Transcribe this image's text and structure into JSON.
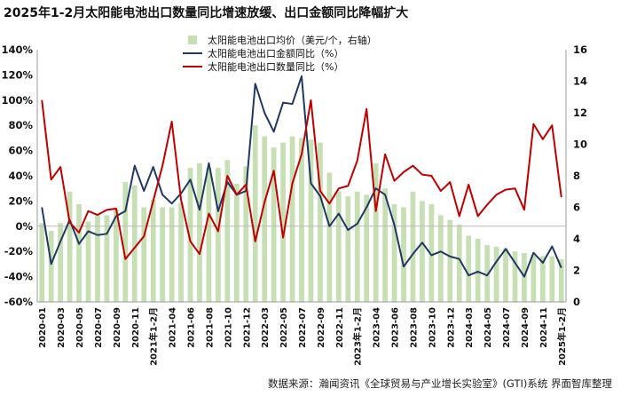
{
  "title": "2025年1-2月太阳能电池出口数量同比增速放缓、出口金额同比降幅扩大",
  "source": "数据来源：瀚闻资讯《全球贸易与产业增长实验室》(GTI)系统  界面智库整理",
  "colors": {
    "bar": "#c6e0b4",
    "amount": "#1f3864",
    "quantity": "#c00000",
    "axis": "#999999"
  },
  "chart_data": {
    "type": "bar+line",
    "categories": [
      "2020-01",
      "2020-02",
      "2020-03",
      "2020-04",
      "2020-05",
      "2020-06",
      "2020-07",
      "2020-08",
      "2020-09",
      "2020-10",
      "2020-11",
      "2020-12",
      "2021年1-2月",
      "2021-03",
      "2021-04",
      "2021-05",
      "2021-06",
      "2021-07",
      "2021-08",
      "2021-09",
      "2021-10",
      "2021-11",
      "2021-12",
      "2022年1-2月",
      "2022-03",
      "2022-04",
      "2022-05",
      "2022-06",
      "2022-07",
      "2022-08",
      "2022-09",
      "2022-10",
      "2022-11",
      "2022-12",
      "2023年1-2月",
      "2023-03",
      "2023-04",
      "2023-05",
      "2023-06",
      "2023-07",
      "2023-08",
      "2023-09",
      "2023-10",
      "2023-11",
      "2023-12",
      "2024年1-2月",
      "2024-03",
      "2024-04",
      "2024-05",
      "2024-06",
      "2024-07",
      "2024-08",
      "2024-09",
      "2024-10",
      "2024-11",
      "2024-12",
      "2025年1-2月"
    ],
    "xtick_labels": [
      "2020-01",
      "2020-03",
      "2020-05",
      "2020-07",
      "2020-09",
      "2020-11",
      "2021年1-2月",
      "2021-04",
      "2021-06",
      "2021-08",
      "2021-10",
      "2021-12",
      "2022-03",
      "2022-05",
      "2022-07",
      "2022-09",
      "2022-11",
      "2023年1-2月",
      "2023-04",
      "2023-06",
      "2023-08",
      "2023-10",
      "2023-12",
      "2024-03",
      "2024-05",
      "2024-07",
      "2024-09",
      "2024-11",
      "2025年1-2月"
    ],
    "series": [
      {
        "name": "太阳能电池出口均价（美元/个，右轴）",
        "type": "bar",
        "axis": "right",
        "values": [
          5.0,
          4.5,
          5.0,
          7.0,
          6.2,
          5.1,
          5.5,
          5.5,
          5.9,
          7.6,
          7.4,
          6.0,
          6.5,
          6.0,
          6.0,
          6.3,
          8.5,
          8.8,
          8.5,
          8.5,
          9.0,
          7.5,
          8.6,
          11.2,
          10.5,
          9.8,
          10.1,
          10.5,
          10.4,
          10.3,
          10.1,
          8.2,
          7.0,
          6.7,
          7.0,
          6.8,
          8.8,
          7.2,
          6.2,
          6.0,
          7.0,
          6.4,
          6.2,
          5.5,
          5.2,
          4.9,
          4.2,
          4.0,
          3.6,
          3.5,
          3.4,
          3.2,
          3.1,
          3.0,
          2.9,
          2.9,
          2.7
        ]
      },
      {
        "name": "太阳能电池出口金额同比（%）",
        "type": "line",
        "axis": "left",
        "values": [
          15,
          -30,
          -12,
          5,
          -14,
          -4,
          -7,
          -6,
          8,
          12,
          48,
          28,
          47,
          25,
          18,
          26,
          37,
          13,
          50,
          12,
          35,
          25,
          28,
          113,
          90,
          75,
          98,
          97,
          119,
          34,
          24,
          0,
          10,
          -3,
          2,
          15,
          30,
          25,
          1,
          -32,
          -22,
          -13,
          -23,
          -20,
          -24,
          -26,
          -39,
          -36,
          -39,
          -28,
          -18,
          -29,
          -40,
          -21,
          -29,
          -16,
          -33
        ]
      },
      {
        "name": "太阳能电池出口数量同比（%）",
        "type": "line",
        "axis": "left",
        "values": [
          100,
          37,
          47,
          3,
          -5,
          12,
          9,
          13,
          14,
          -26,
          -17,
          -8,
          20,
          48,
          83,
          21,
          -12,
          -22,
          10,
          -4,
          40,
          25,
          33,
          -12,
          19,
          44,
          -9,
          34,
          57,
          100,
          28,
          18,
          30,
          32,
          52,
          93,
          12,
          57,
          36,
          43,
          48,
          41,
          40,
          28,
          35,
          8,
          33,
          8,
          17,
          25,
          29,
          30,
          13,
          81,
          69,
          80,
          23
        ]
      }
    ],
    "y_left": {
      "ticks": [
        "140%",
        "120%",
        "100%",
        "80%",
        "60%",
        "40%",
        "20%",
        "0%",
        "-20%",
        "-40%",
        "-60%"
      ],
      "range": [
        -60,
        140
      ]
    },
    "y_right": {
      "ticks": [
        "16",
        "14",
        "12",
        "10",
        "8",
        "6",
        "4",
        "2",
        "0"
      ],
      "range": [
        0,
        16
      ]
    },
    "legend_position": "top-center",
    "grid": false
  }
}
